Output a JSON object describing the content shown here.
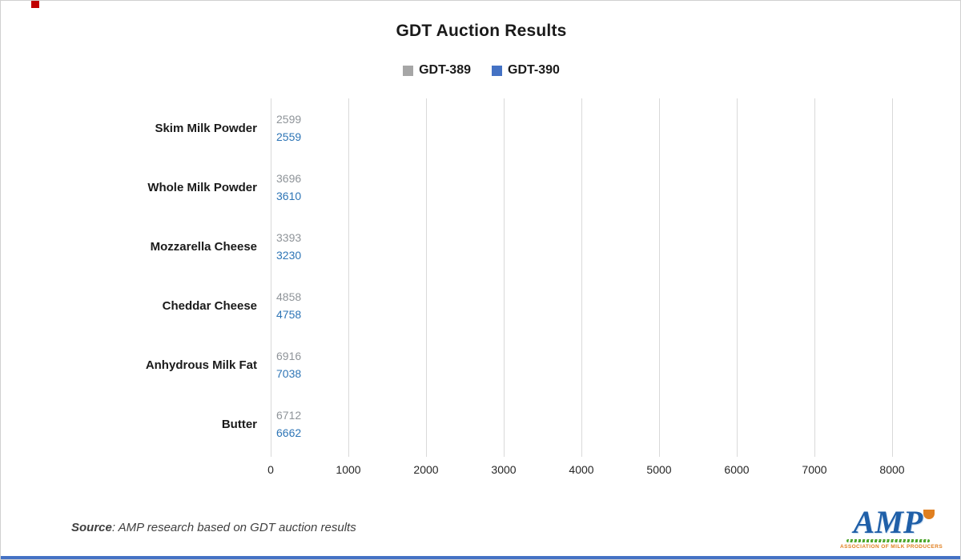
{
  "title": "GDT Auction Results",
  "legend": [
    {
      "label": "GDT-389",
      "color": "#a6a6a6"
    },
    {
      "label": "GDT-390",
      "color": "#4472c4"
    }
  ],
  "chart_data": {
    "type": "bar",
    "orientation": "horizontal",
    "title": "GDT Auction Results",
    "categories": [
      "Skim Milk Powder",
      "Whole Milk Powder",
      "Mozzarella Cheese",
      "Cheddar Cheese",
      "Anhydrous Milk Fat",
      "Butter"
    ],
    "series": [
      {
        "name": "GDT-389",
        "color": "#a6a6a6",
        "label_color": "#8f9499",
        "values": [
          2599,
          3696,
          3393,
          4858,
          6916,
          6712
        ]
      },
      {
        "name": "GDT-390",
        "color": "#4472c4",
        "label_color": "#2e75b6",
        "values": [
          2559,
          3610,
          3230,
          4758,
          7038,
          6662
        ]
      }
    ],
    "xlim": [
      0,
      8000
    ],
    "xticks": [
      0,
      1000,
      2000,
      3000,
      4000,
      5000,
      6000,
      7000,
      8000
    ],
    "grid": "vertical",
    "legend_position": "top",
    "value_labels": true
  },
  "source": {
    "label": "Source",
    "rest": ": AMP research based on GDT auction results"
  },
  "logo": {
    "text": "AMP",
    "subtext": "ASSOCIATION OF MILK PRODUCERS"
  },
  "accents": {
    "corner_mark_color": "#c00000",
    "bottom_strip_color": "#4472c4",
    "gridline_color": "#d9d9d9"
  }
}
